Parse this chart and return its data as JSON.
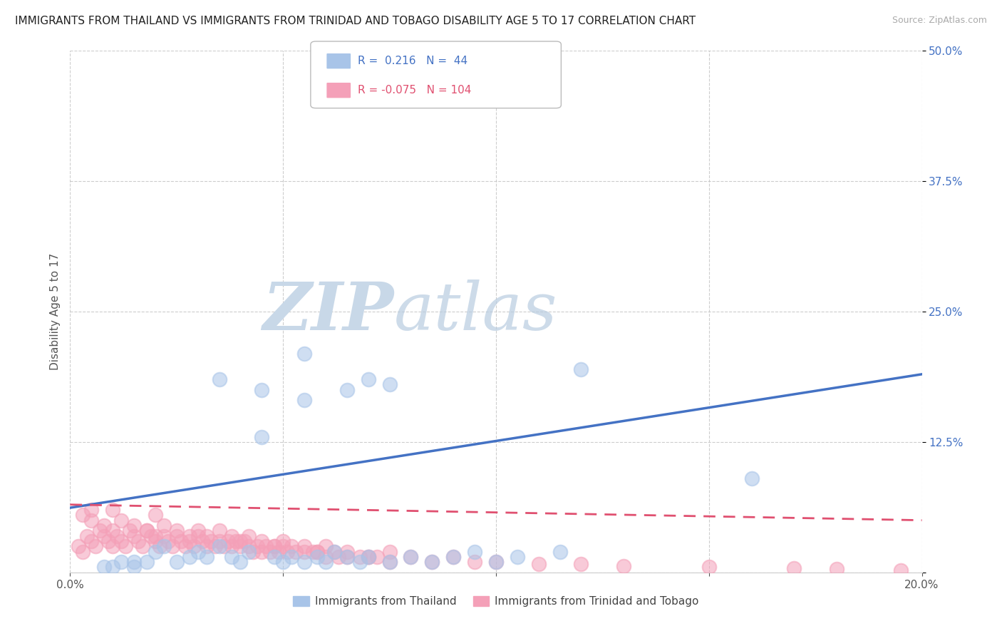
{
  "title": "IMMIGRANTS FROM THAILAND VS IMMIGRANTS FROM TRINIDAD AND TOBAGO DISABILITY AGE 5 TO 17 CORRELATION CHART",
  "source": "Source: ZipAtlas.com",
  "ylabel": "Disability Age 5 to 17",
  "xlim": [
    0.0,
    0.2
  ],
  "ylim": [
    0.0,
    0.5
  ],
  "xticks": [
    0.0,
    0.05,
    0.1,
    0.15,
    0.2
  ],
  "xtick_labels": [
    "0.0%",
    "",
    "",
    "",
    "20.0%"
  ],
  "yticks": [
    0.0,
    0.125,
    0.25,
    0.375,
    0.5
  ],
  "ytick_labels": [
    "",
    "12.5%",
    "25.0%",
    "37.5%",
    "50.0%"
  ],
  "legend_labels": [
    "Immigrants from Thailand",
    "Immigrants from Trinidad and Tobago"
  ],
  "R_thailand": 0.216,
  "N_thailand": 44,
  "R_trinidad": -0.075,
  "N_trinidad": 104,
  "color_thailand": "#a8c4e8",
  "color_trinidad": "#f4a0b8",
  "line_color_thailand": "#4472c4",
  "line_color_trinidad": "#e05070",
  "background_color": "#ffffff",
  "grid_color": "#c8c8c8",
  "watermark_zip": "ZIP",
  "watermark_atlas": "atlas",
  "watermark_color": "#c8d8e8",
  "title_fontsize": 11,
  "axis_label_fontsize": 11,
  "tick_fontsize": 11,
  "thailand_x": [
    0.02,
    0.022,
    0.025,
    0.028,
    0.012,
    0.015,
    0.018,
    0.03,
    0.032,
    0.035,
    0.038,
    0.04,
    0.042,
    0.048,
    0.05,
    0.052,
    0.055,
    0.058,
    0.06,
    0.062,
    0.065,
    0.068,
    0.07,
    0.075,
    0.08,
    0.085,
    0.09,
    0.095,
    0.1,
    0.105,
    0.115,
    0.008,
    0.01,
    0.015,
    0.045,
    0.055,
    0.065,
    0.075,
    0.16,
    0.12,
    0.035,
    0.045,
    0.055,
    0.07
  ],
  "thailand_y": [
    0.02,
    0.025,
    0.01,
    0.015,
    0.01,
    0.01,
    0.01,
    0.02,
    0.015,
    0.025,
    0.015,
    0.01,
    0.02,
    0.015,
    0.01,
    0.015,
    0.01,
    0.015,
    0.01,
    0.02,
    0.015,
    0.01,
    0.015,
    0.01,
    0.015,
    0.01,
    0.015,
    0.02,
    0.01,
    0.015,
    0.02,
    0.005,
    0.005,
    0.005,
    0.175,
    0.165,
    0.175,
    0.18,
    0.09,
    0.195,
    0.185,
    0.13,
    0.21,
    0.185
  ],
  "trinidad_x": [
    0.002,
    0.003,
    0.004,
    0.005,
    0.006,
    0.007,
    0.008,
    0.009,
    0.01,
    0.011,
    0.012,
    0.013,
    0.014,
    0.015,
    0.016,
    0.017,
    0.018,
    0.019,
    0.02,
    0.021,
    0.022,
    0.023,
    0.024,
    0.025,
    0.026,
    0.027,
    0.028,
    0.029,
    0.03,
    0.031,
    0.032,
    0.033,
    0.034,
    0.035,
    0.036,
    0.037,
    0.038,
    0.039,
    0.04,
    0.041,
    0.042,
    0.043,
    0.044,
    0.045,
    0.046,
    0.047,
    0.048,
    0.049,
    0.05,
    0.051,
    0.052,
    0.053,
    0.055,
    0.057,
    0.058,
    0.06,
    0.062,
    0.063,
    0.065,
    0.068,
    0.07,
    0.072,
    0.075,
    0.003,
    0.005,
    0.008,
    0.01,
    0.012,
    0.015,
    0.018,
    0.02,
    0.022,
    0.025,
    0.028,
    0.03,
    0.032,
    0.035,
    0.038,
    0.04,
    0.042,
    0.045,
    0.048,
    0.05,
    0.055,
    0.058,
    0.06,
    0.065,
    0.07,
    0.075,
    0.08,
    0.085,
    0.09,
    0.095,
    0.1,
    0.11,
    0.12,
    0.13,
    0.15,
    0.17,
    0.18,
    0.195,
    0.005,
    0.01,
    0.02
  ],
  "trinidad_y": [
    0.025,
    0.02,
    0.035,
    0.03,
    0.025,
    0.04,
    0.035,
    0.03,
    0.025,
    0.035,
    0.03,
    0.025,
    0.04,
    0.035,
    0.03,
    0.025,
    0.04,
    0.035,
    0.03,
    0.025,
    0.035,
    0.03,
    0.025,
    0.035,
    0.03,
    0.025,
    0.03,
    0.025,
    0.035,
    0.03,
    0.025,
    0.03,
    0.025,
    0.03,
    0.025,
    0.03,
    0.025,
    0.03,
    0.025,
    0.03,
    0.025,
    0.02,
    0.025,
    0.02,
    0.025,
    0.02,
    0.025,
    0.02,
    0.025,
    0.02,
    0.025,
    0.02,
    0.02,
    0.02,
    0.02,
    0.015,
    0.02,
    0.015,
    0.015,
    0.015,
    0.015,
    0.015,
    0.01,
    0.055,
    0.05,
    0.045,
    0.04,
    0.05,
    0.045,
    0.04,
    0.035,
    0.045,
    0.04,
    0.035,
    0.04,
    0.035,
    0.04,
    0.035,
    0.03,
    0.035,
    0.03,
    0.025,
    0.03,
    0.025,
    0.02,
    0.025,
    0.02,
    0.015,
    0.02,
    0.015,
    0.01,
    0.015,
    0.01,
    0.01,
    0.008,
    0.008,
    0.006,
    0.005,
    0.004,
    0.003,
    0.002,
    0.06,
    0.06,
    0.055
  ]
}
